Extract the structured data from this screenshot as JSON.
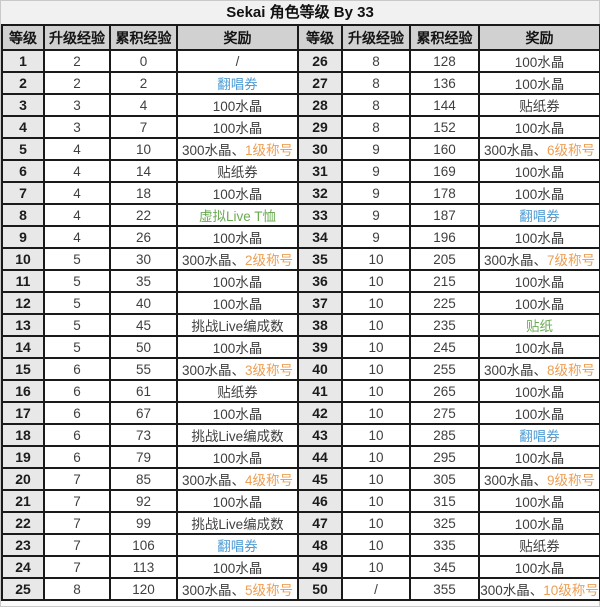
{
  "title": "Sekai 角色等级 By 33",
  "colors": {
    "text_default": "#3f3f3f",
    "blue": "#4e9cd5",
    "green": "#6bab52",
    "orange": "#ec9f55",
    "header_bg": "#d1d1d1",
    "level_col_bg": "#e8e8e8",
    "title_bg": "#f1f1f1",
    "border": "#1a1a1a"
  },
  "chart_data": {
    "type": "table",
    "title": "Sekai 角色等级 By 33",
    "layout": "two side-by-side tables: levels 1-25 (left) and 26-50 (right), shared header row",
    "columns": [
      "等级",
      "升级经验",
      "累积经验",
      "奖励"
    ],
    "rows_left": [
      {
        "level": "1",
        "exp": "2",
        "cum": "0",
        "reward": [
          [
            "/",
            "default"
          ]
        ]
      },
      {
        "level": "2",
        "exp": "2",
        "cum": "2",
        "reward": [
          [
            "翻唱券",
            "blue"
          ]
        ]
      },
      {
        "level": "3",
        "exp": "3",
        "cum": "4",
        "reward": [
          [
            "100水晶",
            "default"
          ]
        ]
      },
      {
        "level": "4",
        "exp": "3",
        "cum": "7",
        "reward": [
          [
            "100水晶",
            "default"
          ]
        ]
      },
      {
        "level": "5",
        "exp": "4",
        "cum": "10",
        "reward": [
          [
            "300水晶、",
            "default"
          ],
          [
            "1级称号",
            "orange"
          ]
        ]
      },
      {
        "level": "6",
        "exp": "4",
        "cum": "14",
        "reward": [
          [
            "贴纸券",
            "default"
          ]
        ]
      },
      {
        "level": "7",
        "exp": "4",
        "cum": "18",
        "reward": [
          [
            "100水晶",
            "default"
          ]
        ]
      },
      {
        "level": "8",
        "exp": "4",
        "cum": "22",
        "reward": [
          [
            "虚拟Live T恤",
            "green"
          ]
        ]
      },
      {
        "level": "9",
        "exp": "4",
        "cum": "26",
        "reward": [
          [
            "100水晶",
            "default"
          ]
        ]
      },
      {
        "level": "10",
        "exp": "5",
        "cum": "30",
        "reward": [
          [
            "300水晶、",
            "default"
          ],
          [
            "2级称号",
            "orange"
          ]
        ]
      },
      {
        "level": "11",
        "exp": "5",
        "cum": "35",
        "reward": [
          [
            "100水晶",
            "default"
          ]
        ]
      },
      {
        "level": "12",
        "exp": "5",
        "cum": "40",
        "reward": [
          [
            "100水晶",
            "default"
          ]
        ]
      },
      {
        "level": "13",
        "exp": "5",
        "cum": "45",
        "reward": [
          [
            "挑战Live编成数",
            "default"
          ]
        ]
      },
      {
        "level": "14",
        "exp": "5",
        "cum": "50",
        "reward": [
          [
            "100水晶",
            "default"
          ]
        ]
      },
      {
        "level": "15",
        "exp": "6",
        "cum": "55",
        "reward": [
          [
            "300水晶、",
            "default"
          ],
          [
            "3级称号",
            "orange"
          ]
        ]
      },
      {
        "level": "16",
        "exp": "6",
        "cum": "61",
        "reward": [
          [
            "贴纸券",
            "default"
          ]
        ]
      },
      {
        "level": "17",
        "exp": "6",
        "cum": "67",
        "reward": [
          [
            "100水晶",
            "default"
          ]
        ]
      },
      {
        "level": "18",
        "exp": "6",
        "cum": "73",
        "reward": [
          [
            "挑战Live编成数",
            "default"
          ]
        ]
      },
      {
        "level": "19",
        "exp": "6",
        "cum": "79",
        "reward": [
          [
            "100水晶",
            "default"
          ]
        ]
      },
      {
        "level": "20",
        "exp": "7",
        "cum": "85",
        "reward": [
          [
            "300水晶、",
            "default"
          ],
          [
            "4级称号",
            "orange"
          ]
        ]
      },
      {
        "level": "21",
        "exp": "7",
        "cum": "92",
        "reward": [
          [
            "100水晶",
            "default"
          ]
        ]
      },
      {
        "level": "22",
        "exp": "7",
        "cum": "99",
        "reward": [
          [
            "挑战Live编成数",
            "default"
          ]
        ]
      },
      {
        "level": "23",
        "exp": "7",
        "cum": "106",
        "reward": [
          [
            "翻唱券",
            "blue"
          ]
        ]
      },
      {
        "level": "24",
        "exp": "7",
        "cum": "113",
        "reward": [
          [
            "100水晶",
            "default"
          ]
        ]
      },
      {
        "level": "25",
        "exp": "8",
        "cum": "120",
        "reward": [
          [
            "300水晶、",
            "default"
          ],
          [
            "5级称号",
            "orange"
          ]
        ]
      }
    ],
    "rows_right": [
      {
        "level": "26",
        "exp": "8",
        "cum": "128",
        "reward": [
          [
            "100水晶",
            "default"
          ]
        ]
      },
      {
        "level": "27",
        "exp": "8",
        "cum": "136",
        "reward": [
          [
            "100水晶",
            "default"
          ]
        ]
      },
      {
        "level": "28",
        "exp": "8",
        "cum": "144",
        "reward": [
          [
            "贴纸券",
            "default"
          ]
        ]
      },
      {
        "level": "29",
        "exp": "8",
        "cum": "152",
        "reward": [
          [
            "100水晶",
            "default"
          ]
        ]
      },
      {
        "level": "30",
        "exp": "9",
        "cum": "160",
        "reward": [
          [
            "300水晶、",
            "default"
          ],
          [
            "6级称号",
            "orange"
          ]
        ]
      },
      {
        "level": "31",
        "exp": "9",
        "cum": "169",
        "reward": [
          [
            "100水晶",
            "default"
          ]
        ]
      },
      {
        "level": "32",
        "exp": "9",
        "cum": "178",
        "reward": [
          [
            "100水晶",
            "default"
          ]
        ]
      },
      {
        "level": "33",
        "exp": "9",
        "cum": "187",
        "reward": [
          [
            "翻唱券",
            "blue"
          ]
        ]
      },
      {
        "level": "34",
        "exp": "9",
        "cum": "196",
        "reward": [
          [
            "100水晶",
            "default"
          ]
        ]
      },
      {
        "level": "35",
        "exp": "10",
        "cum": "205",
        "reward": [
          [
            "300水晶、",
            "default"
          ],
          [
            "7级称号",
            "orange"
          ]
        ]
      },
      {
        "level": "36",
        "exp": "10",
        "cum": "215",
        "reward": [
          [
            "100水晶",
            "default"
          ]
        ]
      },
      {
        "level": "37",
        "exp": "10",
        "cum": "225",
        "reward": [
          [
            "100水晶",
            "default"
          ]
        ]
      },
      {
        "level": "38",
        "exp": "10",
        "cum": "235",
        "reward": [
          [
            "贴纸",
            "green"
          ]
        ]
      },
      {
        "level": "39",
        "exp": "10",
        "cum": "245",
        "reward": [
          [
            "100水晶",
            "default"
          ]
        ]
      },
      {
        "level": "40",
        "exp": "10",
        "cum": "255",
        "reward": [
          [
            "300水晶、",
            "default"
          ],
          [
            "8级称号",
            "orange"
          ]
        ]
      },
      {
        "level": "41",
        "exp": "10",
        "cum": "265",
        "reward": [
          [
            "100水晶",
            "default"
          ]
        ]
      },
      {
        "level": "42",
        "exp": "10",
        "cum": "275",
        "reward": [
          [
            "100水晶",
            "default"
          ]
        ]
      },
      {
        "level": "43",
        "exp": "10",
        "cum": "285",
        "reward": [
          [
            "翻唱券",
            "blue"
          ]
        ]
      },
      {
        "level": "44",
        "exp": "10",
        "cum": "295",
        "reward": [
          [
            "100水晶",
            "default"
          ]
        ]
      },
      {
        "level": "45",
        "exp": "10",
        "cum": "305",
        "reward": [
          [
            "300水晶、",
            "default"
          ],
          [
            "9级称号",
            "orange"
          ]
        ]
      },
      {
        "level": "46",
        "exp": "10",
        "cum": "315",
        "reward": [
          [
            "100水晶",
            "default"
          ]
        ]
      },
      {
        "level": "47",
        "exp": "10",
        "cum": "325",
        "reward": [
          [
            "100水晶",
            "default"
          ]
        ]
      },
      {
        "level": "48",
        "exp": "10",
        "cum": "335",
        "reward": [
          [
            "贴纸券",
            "default"
          ]
        ]
      },
      {
        "level": "49",
        "exp": "10",
        "cum": "345",
        "reward": [
          [
            "100水晶",
            "default"
          ]
        ]
      },
      {
        "level": "50",
        "exp": "/",
        "cum": "355",
        "reward": [
          [
            "300水晶、",
            "default"
          ],
          [
            "10级称号",
            "orange"
          ]
        ]
      }
    ]
  }
}
